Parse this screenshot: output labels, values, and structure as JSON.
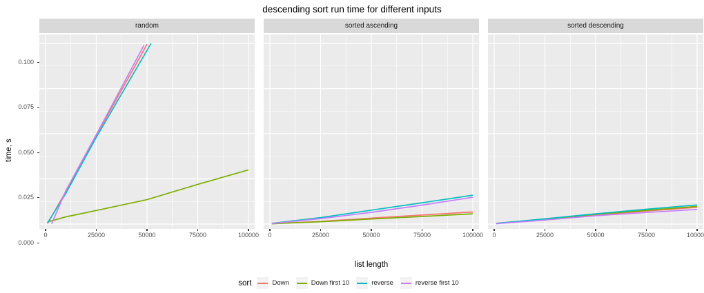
{
  "chart_data": {
    "type": "line",
    "title": "descending sort run time for different inputs",
    "xlabel": "list length",
    "ylabel": "time, s",
    "xlim": [
      0,
      100000
    ],
    "ylim": [
      0,
      0.1
    ],
    "x_ticks": [
      0,
      25000,
      50000,
      75000,
      100000
    ],
    "x_tick_labels": [
      "0",
      "25000",
      "50000",
      "75000",
      "100000"
    ],
    "x_minor": [
      12500,
      37500,
      62500,
      87500
    ],
    "y_ticks": [
      0,
      0.025,
      0.05,
      0.075,
      0.1
    ],
    "y_tick_labels": [
      "0.000",
      "0.025",
      "0.050",
      "0.075",
      "0.100"
    ],
    "y_minor": [
      0.0125,
      0.0375,
      0.0625,
      0.0875
    ],
    "grid": "major and minor, white on grey panel",
    "legend": {
      "title": "sort",
      "position": "bottom",
      "entries": [
        {
          "label": "Down",
          "color": "#F8766D"
        },
        {
          "label": "Down first 10",
          "color": "#7CAE00"
        },
        {
          "label": "reverse",
          "color": "#00BFC4"
        },
        {
          "label": "reverse first 10",
          "color": "#C77CFF"
        }
      ]
    },
    "facets": [
      {
        "label": "random",
        "series": [
          {
            "name": "Down",
            "points": [
              [
                1200,
                0.0006
              ],
              [
                10000,
                0.018
              ],
              [
                25000,
                0.049
              ],
              [
                50000,
                0.0995
              ]
            ]
          },
          {
            "name": "Down first 10",
            "points": [
              [
                1000,
                0.0012
              ],
              [
                10000,
                0.004
              ],
              [
                25000,
                0.0075
              ],
              [
                50000,
                0.0135
              ],
              [
                75000,
                0.022
              ],
              [
                100000,
                0.03
              ]
            ]
          },
          {
            "name": "reverse",
            "points": [
              [
                800,
                0.0003
              ],
              [
                10000,
                0.017
              ],
              [
                25000,
                0.048
              ],
              [
                52000,
                0.1
              ]
            ]
          },
          {
            "name": "reverse first 10",
            "points": [
              [
                3000,
                0.0001
              ],
              [
                10000,
                0.0185
              ],
              [
                25000,
                0.0495
              ],
              [
                48500,
                0.099
              ]
            ]
          }
        ]
      },
      {
        "label": "sorted ascending",
        "series": [
          {
            "name": "Down",
            "points": [
              [
                1000,
                0.0002
              ],
              [
                25000,
                0.0015
              ],
              [
                50000,
                0.0033
              ],
              [
                75000,
                0.005
              ],
              [
                100000,
                0.0067
              ]
            ]
          },
          {
            "name": "Down first 10",
            "points": [
              [
                1000,
                0.0002
              ],
              [
                25000,
                0.0013
              ],
              [
                50000,
                0.0028
              ],
              [
                75000,
                0.0042
              ],
              [
                100000,
                0.0057
              ]
            ]
          },
          {
            "name": "reverse",
            "points": [
              [
                1000,
                0.0004
              ],
              [
                25000,
                0.0036
              ],
              [
                50000,
                0.0077
              ],
              [
                75000,
                0.0118
              ],
              [
                100000,
                0.016
              ]
            ]
          },
          {
            "name": "reverse first 10",
            "points": [
              [
                1000,
                0.0003
              ],
              [
                25000,
                0.003
              ],
              [
                50000,
                0.0065
              ],
              [
                75000,
                0.0105
              ],
              [
                100000,
                0.0148
              ]
            ]
          }
        ]
      },
      {
        "label": "sorted descending",
        "series": [
          {
            "name": "Down",
            "points": [
              [
                1000,
                0.0003
              ],
              [
                25000,
                0.0025
              ],
              [
                50000,
                0.005
              ],
              [
                75000,
                0.0072
              ],
              [
                100000,
                0.0093
              ]
            ]
          },
          {
            "name": "Down first 10",
            "points": [
              [
                1000,
                0.0004
              ],
              [
                25000,
                0.0027
              ],
              [
                50000,
                0.0054
              ],
              [
                75000,
                0.0076
              ],
              [
                100000,
                0.0098
              ]
            ]
          },
          {
            "name": "reverse",
            "points": [
              [
                1000,
                0.0004
              ],
              [
                25000,
                0.0029
              ],
              [
                50000,
                0.0057
              ],
              [
                75000,
                0.0082
              ],
              [
                100000,
                0.0106
              ]
            ]
          },
          {
            "name": "reverse first 10",
            "points": [
              [
                1000,
                0.0002
              ],
              [
                25000,
                0.0022
              ],
              [
                50000,
                0.0046
              ],
              [
                75000,
                0.0064
              ],
              [
                100000,
                0.0081
              ]
            ]
          }
        ]
      }
    ]
  },
  "theme": {
    "panel_bg": "#EBEBEB",
    "strip_bg": "#D9D9D9",
    "grid_color": "#FFFFFF",
    "tick_label_color": "#4D4D4D",
    "tick_mark_color": "#333333",
    "legend_key_bg": "#F2F2F2"
  }
}
